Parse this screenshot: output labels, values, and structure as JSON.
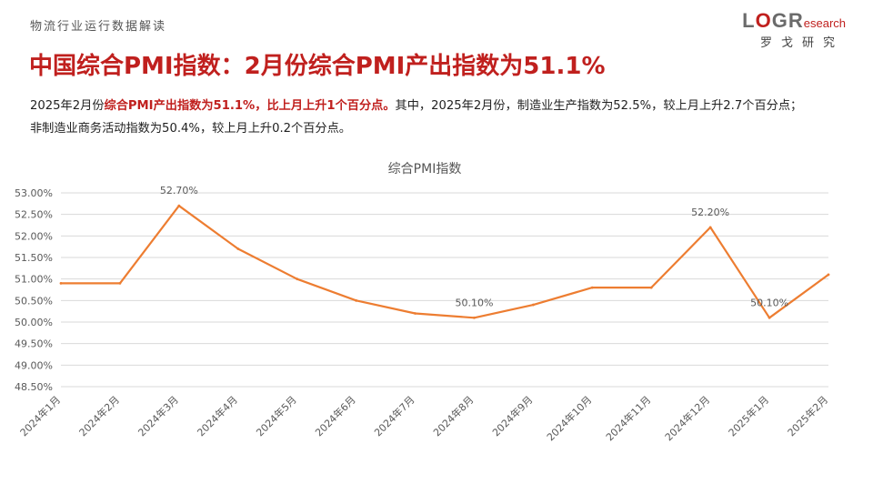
{
  "header": {
    "category": "物流行业运行数据解读",
    "logo_letters": [
      "L",
      "O",
      "G",
      "R"
    ],
    "logo_sub": "esearch",
    "logo_cn": "罗戈研究"
  },
  "headline": "中国综合PMI指数：2月份综合PMI产出指数为51.1%",
  "summary": {
    "part1": "2025年2月份",
    "highlight": "综合PMI产出指数为51.1%，比上月上升1个百分点。",
    "part2": "其中，2025年2月份，制造业生产指数为52.5%，较上月上升2.7个百分点；",
    "line2": "非制造业商务活动指数为50.4%，较上月上升0.2个百分点。"
  },
  "colors": {
    "brand_red": "#c0201e",
    "line": "#ed7d31",
    "grid": "#d9d9d9"
  },
  "chart_data": {
    "type": "line",
    "title": "综合PMI指数",
    "categories": [
      "2024年1月",
      "2024年2月",
      "2024年3月",
      "2024年4月",
      "2024年5月",
      "2024年6月",
      "2024年7月",
      "2024年8月",
      "2024年9月",
      "2024年10月",
      "2024年11月",
      "2024年12月",
      "2025年1月",
      "2025年2月"
    ],
    "series": [
      {
        "values": [
          50.9,
          50.9,
          52.7,
          51.7,
          51.0,
          50.5,
          50.2,
          50.1,
          50.4,
          50.8,
          50.8,
          52.2,
          50.1,
          51.1
        ]
      }
    ],
    "data_labels": [
      {
        "index": 2,
        "text": "52.70%"
      },
      {
        "index": 7,
        "text": "50.10%"
      },
      {
        "index": 11,
        "text": "52.20%"
      },
      {
        "index": 12,
        "text": "50.10%"
      }
    ],
    "y_ticks": [
      "48.50%",
      "49.00%",
      "49.50%",
      "50.00%",
      "50.50%",
      "51.00%",
      "51.50%",
      "52.00%",
      "52.50%",
      "53.00%"
    ],
    "ylim": [
      48.5,
      53.0
    ],
    "grid": true,
    "legend": "none"
  }
}
